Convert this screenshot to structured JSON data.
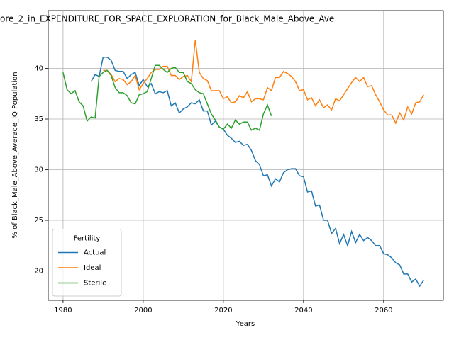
{
  "chart_data": {
    "type": "line",
    "title": "ore_2_in_EXPENDITURE_FOR_SPACE_EXPLORATION_for_Black_Male_Above_Ave",
    "xlabel": "Years",
    "ylabel": "% of Black_Male_Above_Average_IQ Population",
    "legend_title": "Fertility",
    "legend": "lower left",
    "grid": true,
    "xlim": [
      1976.3,
      2074.9
    ],
    "ylim": [
      17.1,
      45.7
    ],
    "xticks": [
      1980,
      2000,
      2020,
      2040,
      2060
    ],
    "yticks": [
      20,
      25,
      30,
      35,
      40
    ],
    "x": [
      1980,
      1981,
      1982,
      1983,
      1984,
      1985,
      1986,
      1987,
      1988,
      1989,
      1990,
      1991,
      1992,
      1993,
      1994,
      1995,
      1996,
      1997,
      1998,
      1999,
      2000,
      2001,
      2002,
      2003,
      2004,
      2005,
      2006,
      2007,
      2008,
      2009,
      2010,
      2011,
      2012,
      2013,
      2014,
      2015,
      2016,
      2017,
      2018,
      2019,
      2020,
      2021,
      2022,
      2023,
      2024,
      2025,
      2026,
      2027,
      2028,
      2029,
      2030,
      2031,
      2032,
      2033,
      2034,
      2035,
      2036,
      2037,
      2038,
      2039,
      2040,
      2041,
      2042,
      2043,
      2044,
      2045,
      2046,
      2047,
      2048,
      2049,
      2050,
      2051,
      2052,
      2053,
      2054,
      2055,
      2056,
      2057,
      2058,
      2059,
      2060,
      2061,
      2062,
      2063,
      2064,
      2065,
      2066,
      2067,
      2068,
      2069,
      2070
    ],
    "series": [
      {
        "name": "Actual",
        "color": "#1f77b4",
        "values": [
          null,
          null,
          null,
          null,
          null,
          null,
          null,
          38.7,
          39.4,
          39.2,
          41.1,
          41.1,
          40.8,
          39.8,
          39.7,
          39.7,
          39.0,
          39.4,
          39.6,
          38.3,
          38.9,
          38.2,
          38.5,
          37.5,
          37.7,
          37.6,
          37.8,
          36.3,
          36.6,
          35.6,
          36.0,
          36.2,
          36.6,
          36.5,
          36.9,
          35.8,
          35.8,
          34.4,
          34.8,
          34.2,
          34.0,
          33.4,
          33.1,
          32.7,
          32.8,
          32.4,
          32.5,
          31.9,
          30.9,
          30.5,
          29.4,
          29.5,
          28.4,
          29.1,
          28.8,
          29.7,
          30.0,
          30.1,
          30.1,
          29.4,
          29.3,
          27.8,
          27.9,
          26.4,
          26.5,
          25.0,
          25.0,
          23.7,
          24.2,
          22.7,
          23.6,
          22.5,
          23.9,
          22.8,
          23.6,
          23.0,
          23.3,
          23.0,
          22.5,
          22.5,
          21.7,
          21.6,
          21.3,
          20.8,
          20.6,
          19.7,
          19.7,
          18.9,
          19.2,
          18.5,
          19.1
        ]
      },
      {
        "name": "Ideal",
        "color": "#ff7f0e",
        "values": [
          null,
          null,
          null,
          null,
          null,
          null,
          null,
          null,
          null,
          null,
          39.8,
          39.8,
          39.4,
          38.7,
          39.0,
          38.9,
          38.4,
          38.7,
          39.3,
          37.9,
          38.5,
          39.0,
          39.6,
          39.9,
          39.9,
          40.2,
          40.2,
          39.3,
          39.3,
          38.9,
          39.2,
          39.3,
          38.7,
          42.8,
          39.6,
          39.0,
          38.8,
          37.8,
          37.8,
          37.8,
          37.0,
          37.2,
          36.6,
          36.7,
          37.3,
          37.1,
          37.7,
          36.7,
          37.0,
          37.0,
          36.9,
          38.1,
          37.8,
          39.1,
          39.1,
          39.7,
          39.5,
          39.2,
          38.7,
          37.8,
          37.9,
          36.9,
          37.1,
          36.3,
          36.9,
          36.1,
          36.4,
          35.9,
          37.0,
          36.8,
          37.4,
          38.0,
          38.6,
          39.1,
          38.7,
          39.1,
          38.2,
          38.3,
          37.4,
          36.7,
          35.9,
          35.4,
          35.4,
          34.6,
          35.6,
          34.9,
          36.2,
          35.5,
          36.6,
          36.7,
          37.4
        ]
      },
      {
        "name": "Sterile",
        "color": "#2ca02c",
        "values": [
          39.6,
          37.9,
          37.5,
          37.8,
          36.7,
          36.3,
          34.8,
          35.2,
          35.1,
          39.2,
          39.6,
          39.8,
          39.3,
          38.1,
          37.6,
          37.6,
          37.3,
          36.6,
          36.5,
          37.4,
          37.5,
          37.7,
          39.0,
          40.3,
          40.3,
          39.9,
          39.6,
          40.0,
          40.1,
          39.6,
          39.6,
          38.7,
          38.5,
          37.9,
          37.6,
          37.5,
          36.5,
          35.5,
          34.9,
          34.2,
          34.0,
          34.5,
          34.1,
          34.9,
          34.5,
          34.7,
          34.7,
          33.9,
          34.1,
          33.9,
          35.5,
          36.4,
          35.3,
          null,
          null,
          null,
          null,
          null,
          null,
          null,
          null,
          null,
          null,
          null,
          null,
          null,
          null,
          null,
          null,
          null,
          null,
          null,
          null,
          null,
          null,
          null,
          null,
          null,
          null,
          null,
          null,
          null,
          null,
          null,
          null,
          null,
          null,
          null,
          null,
          null,
          null
        ]
      }
    ]
  }
}
